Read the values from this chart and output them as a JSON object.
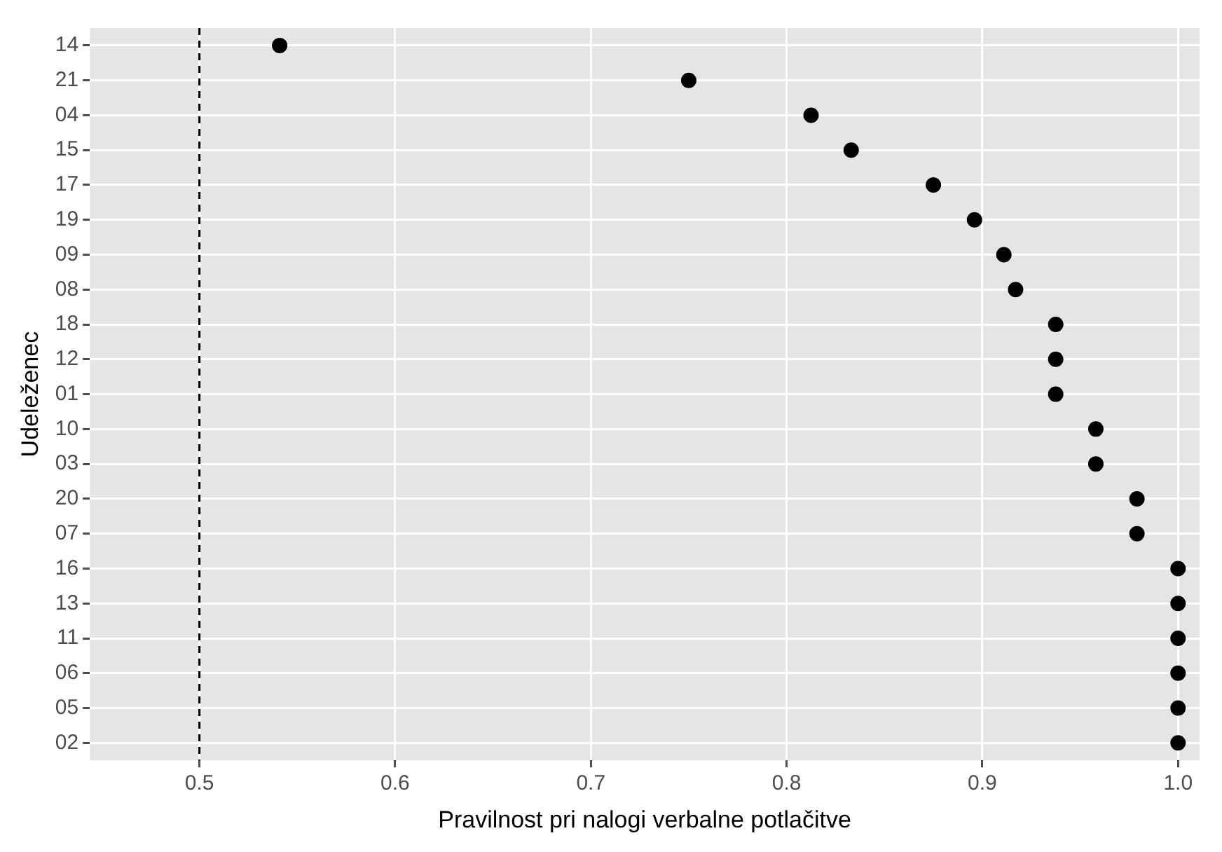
{
  "chart_data": {
    "type": "scatter",
    "orientation": "horizontal",
    "xlabel": "Pravilnost pri nalogi verbalne potlačitve",
    "ylabel": "Udeleženec",
    "categories": [
      "14",
      "21",
      "04",
      "15",
      "17",
      "19",
      "09",
      "08",
      "18",
      "12",
      "01",
      "10",
      "03",
      "20",
      "07",
      "16",
      "13",
      "11",
      "06",
      "05",
      "02"
    ],
    "series": [
      {
        "color": "#000000",
        "values": [
          0.541,
          0.75,
          0.8125,
          0.833,
          0.875,
          0.896,
          0.911,
          0.917,
          0.9375,
          0.9375,
          0.9375,
          0.958,
          0.958,
          0.979,
          0.979,
          1.0,
          1.0,
          1.0,
          1.0,
          1.0,
          1.0
        ]
      }
    ],
    "xlim": [
      0.444,
      1.011
    ],
    "xticks": [
      0.5,
      0.6,
      0.7,
      0.8,
      0.9,
      {
        "value": 1,
        "label": "1.0"
      }
    ],
    "ref_lines": [
      {
        "axis": "x",
        "value": 0.5,
        "color": "#000000",
        "line_style": "dashed"
      }
    ],
    "grid": true,
    "legend": false,
    "marker": "circle"
  }
}
